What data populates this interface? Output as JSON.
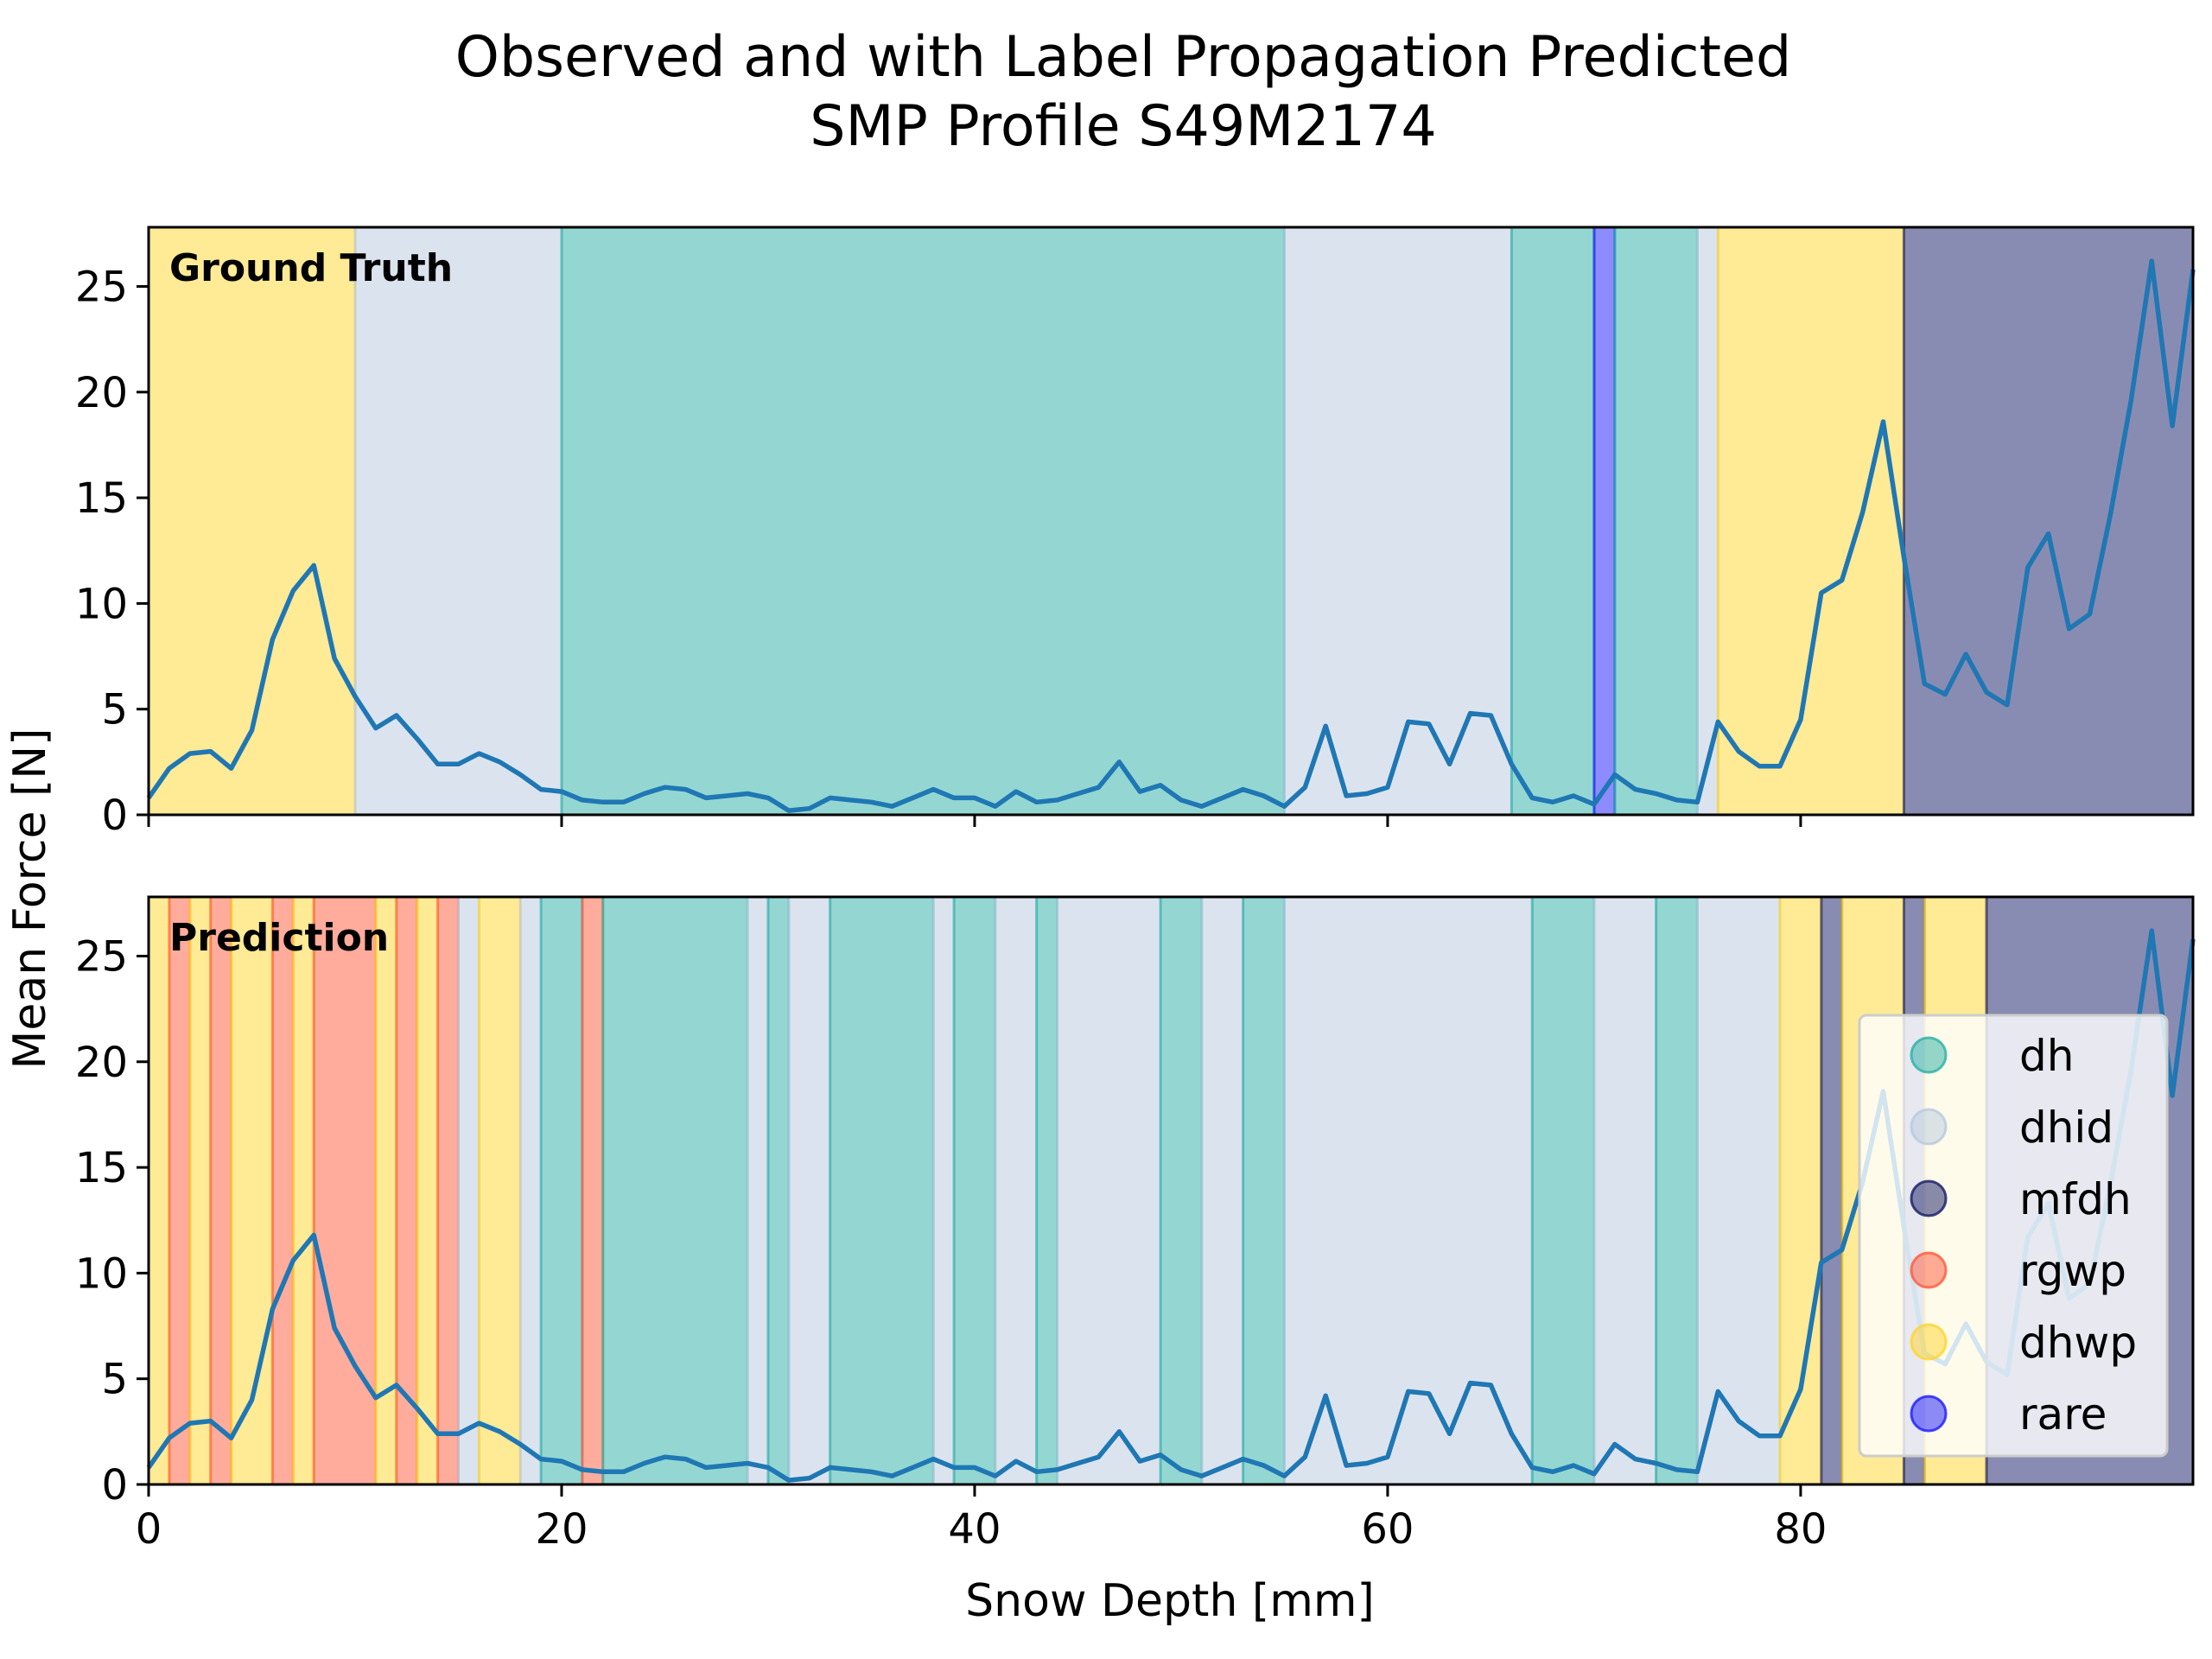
{
  "title_line1": "Observed and with Label Propagation Predicted",
  "title_line2": "SMP Profile S49M2174",
  "chart_data": {
    "type": "line",
    "xlabel": "Snow Depth [mm]",
    "ylabel": "Mean Force [N]",
    "xlim": [
      0,
      99
    ],
    "ylim": [
      0,
      27.8
    ],
    "xticks": [
      0,
      20,
      40,
      60,
      80
    ],
    "yticks": [
      0,
      5,
      10,
      15,
      20,
      25
    ],
    "grid": false,
    "legend_position": "right",
    "classes": [
      {
        "name": "dh",
        "color": "#2ab0a6"
      },
      {
        "name": "dhid",
        "color": "#b7c9de"
      },
      {
        "name": "mfdh",
        "color": "#141a66"
      },
      {
        "name": "rgwp",
        "color": "#ff5a3c"
      },
      {
        "name": "dhwp",
        "color": "#ffd52e"
      },
      {
        "name": "rare",
        "color": "#1a1aff"
      }
    ],
    "series": [
      {
        "x": [
          0,
          1,
          2,
          3,
          4,
          5,
          6,
          7,
          8,
          9,
          10,
          11,
          12,
          13,
          14,
          15,
          16,
          17,
          18,
          19,
          20,
          21,
          22,
          23,
          24,
          25,
          26,
          27,
          28,
          29,
          30,
          31,
          32,
          33,
          34,
          35,
          36,
          37,
          38,
          39,
          40,
          41,
          42,
          43,
          44,
          45,
          46,
          47,
          48,
          49,
          50,
          51,
          52,
          53,
          54,
          55,
          56,
          57,
          58,
          59,
          60,
          61,
          62,
          63,
          64,
          65,
          66,
          67,
          68,
          69,
          70,
          71,
          72,
          73,
          74,
          75,
          76,
          77,
          78,
          79,
          80,
          81,
          82,
          83,
          84,
          85,
          86,
          87,
          88,
          89,
          90,
          91,
          92,
          93,
          94,
          95,
          96,
          97,
          98,
          99
        ],
        "y": [
          0.8,
          2.2,
          2.9,
          3.0,
          2.2,
          4.0,
          8.3,
          10.6,
          11.8,
          7.4,
          5.6,
          4.1,
          4.7,
          3.6,
          2.4,
          2.4,
          2.9,
          2.5,
          1.9,
          1.2,
          1.1,
          0.7,
          0.6,
          0.6,
          1.0,
          1.3,
          1.2,
          0.8,
          0.9,
          1.0,
          0.8,
          0.2,
          0.3,
          0.8,
          0.7,
          0.6,
          0.4,
          0.8,
          1.2,
          0.8,
          0.8,
          0.4,
          1.1,
          0.6,
          0.7,
          1.0,
          1.3,
          2.5,
          1.1,
          1.4,
          0.7,
          0.4,
          0.8,
          1.2,
          0.9,
          0.4,
          1.3,
          4.2,
          0.9,
          1.0,
          1.3,
          4.4,
          4.3,
          2.4,
          4.8,
          4.7,
          2.4,
          0.8,
          0.6,
          0.9,
          0.5,
          1.9,
          1.2,
          1.0,
          0.7,
          0.6,
          4.4,
          3.0,
          2.3,
          2.3,
          4.5,
          10.5,
          11.1,
          14.3,
          18.6,
          12.2,
          6.2,
          5.7,
          7.6,
          5.8,
          5.2,
          11.7,
          13.3,
          8.8,
          9.5,
          14.2,
          19.6,
          26.2,
          18.4,
          25.8
        ]
      }
    ],
    "panels": [
      {
        "label": "Ground Truth",
        "segments": [
          {
            "from": 0,
            "to": 10,
            "class": "dhwp"
          },
          {
            "from": 10,
            "to": 20,
            "class": "dhid"
          },
          {
            "from": 20,
            "to": 55,
            "class": "dh"
          },
          {
            "from": 55,
            "to": 66,
            "class": "dhid"
          },
          {
            "from": 66,
            "to": 70,
            "class": "dh"
          },
          {
            "from": 70,
            "to": 71,
            "class": "rare"
          },
          {
            "from": 71,
            "to": 75,
            "class": "dh"
          },
          {
            "from": 75,
            "to": 76,
            "class": "dhid"
          },
          {
            "from": 76,
            "to": 85,
            "class": "dhwp"
          },
          {
            "from": 85,
            "to": 99,
            "class": "mfdh"
          }
        ]
      },
      {
        "label": "Prediction",
        "segments": [
          {
            "from": 0,
            "to": 1,
            "class": "dhwp"
          },
          {
            "from": 1,
            "to": 2,
            "class": "rgwp"
          },
          {
            "from": 2,
            "to": 3,
            "class": "dhwp"
          },
          {
            "from": 3,
            "to": 4,
            "class": "rgwp"
          },
          {
            "from": 4,
            "to": 6,
            "class": "dhwp"
          },
          {
            "from": 6,
            "to": 7,
            "class": "rgwp"
          },
          {
            "from": 7,
            "to": 8,
            "class": "dhwp"
          },
          {
            "from": 8,
            "to": 11,
            "class": "rgwp"
          },
          {
            "from": 11,
            "to": 12,
            "class": "dhwp"
          },
          {
            "from": 12,
            "to": 13,
            "class": "rgwp"
          },
          {
            "from": 13,
            "to": 14,
            "class": "dhwp"
          },
          {
            "from": 14,
            "to": 15,
            "class": "rgwp"
          },
          {
            "from": 15,
            "to": 16,
            "class": "dhid"
          },
          {
            "from": 16,
            "to": 18,
            "class": "dhwp"
          },
          {
            "from": 18,
            "to": 19,
            "class": "dhid"
          },
          {
            "from": 19,
            "to": 21,
            "class": "dh"
          },
          {
            "from": 21,
            "to": 22,
            "class": "rgwp"
          },
          {
            "from": 22,
            "to": 29,
            "class": "dh"
          },
          {
            "from": 29,
            "to": 30,
            "class": "dhid"
          },
          {
            "from": 30,
            "to": 31,
            "class": "dh"
          },
          {
            "from": 31,
            "to": 33,
            "class": "dhid"
          },
          {
            "from": 33,
            "to": 38,
            "class": "dh"
          },
          {
            "from": 38,
            "to": 39,
            "class": "dhid"
          },
          {
            "from": 39,
            "to": 41,
            "class": "dh"
          },
          {
            "from": 41,
            "to": 43,
            "class": "dhid"
          },
          {
            "from": 43,
            "to": 44,
            "class": "dh"
          },
          {
            "from": 44,
            "to": 49,
            "class": "dhid"
          },
          {
            "from": 49,
            "to": 51,
            "class": "dh"
          },
          {
            "from": 51,
            "to": 53,
            "class": "dhid"
          },
          {
            "from": 53,
            "to": 55,
            "class": "dh"
          },
          {
            "from": 55,
            "to": 67,
            "class": "dhid"
          },
          {
            "from": 67,
            "to": 70,
            "class": "dh"
          },
          {
            "from": 70,
            "to": 73,
            "class": "dhid"
          },
          {
            "from": 73,
            "to": 75,
            "class": "dh"
          },
          {
            "from": 75,
            "to": 79,
            "class": "dhid"
          },
          {
            "from": 79,
            "to": 81,
            "class": "dhwp"
          },
          {
            "from": 81,
            "to": 82,
            "class": "mfdh"
          },
          {
            "from": 82,
            "to": 85,
            "class": "dhwp"
          },
          {
            "from": 85,
            "to": 86,
            "class": "mfdh"
          },
          {
            "from": 86,
            "to": 89,
            "class": "dhwp"
          },
          {
            "from": 89,
            "to": 99,
            "class": "mfdh"
          }
        ]
      }
    ],
    "line_color": "#1f77b4"
  }
}
